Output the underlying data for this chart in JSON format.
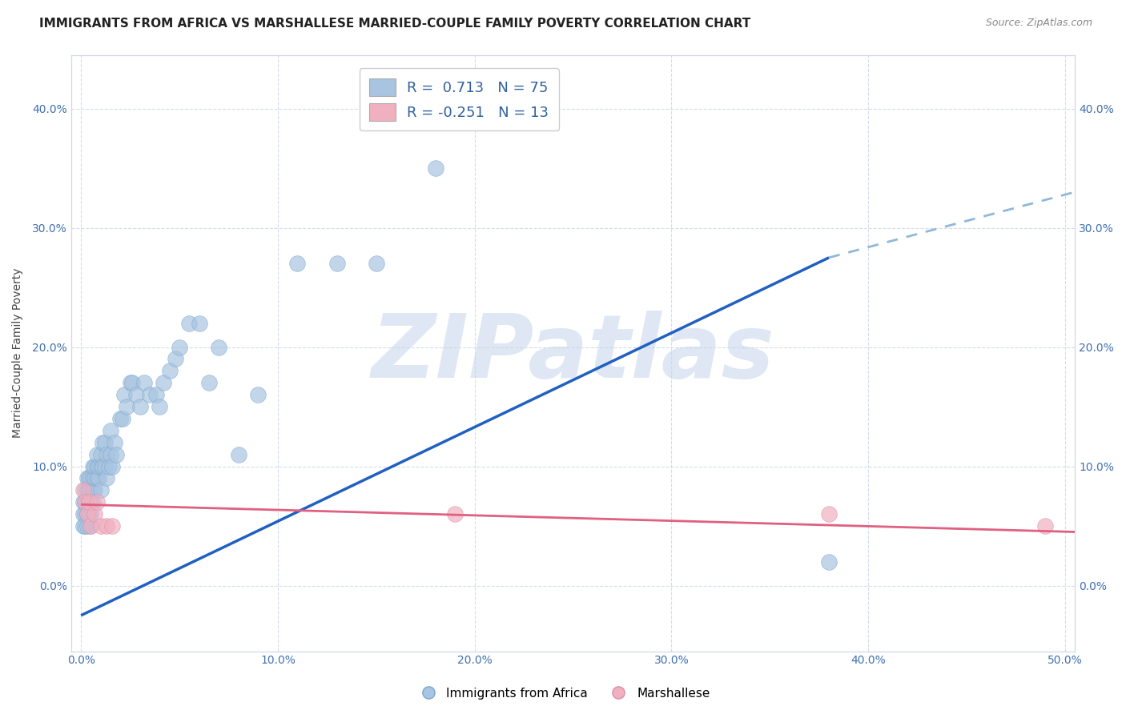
{
  "title": "IMMIGRANTS FROM AFRICA VS MARSHALLESE MARRIED-COUPLE FAMILY POVERTY CORRELATION CHART",
  "source": "Source: ZipAtlas.com",
  "ylabel": "Married-Couple Family Poverty",
  "xlim": [
    -0.005,
    0.505
  ],
  "ylim": [
    -0.055,
    0.445
  ],
  "xticks": [
    0.0,
    0.1,
    0.2,
    0.3,
    0.4,
    0.5
  ],
  "yticks": [
    0.0,
    0.1,
    0.2,
    0.3,
    0.4
  ],
  "ytick_labels": [
    "0.0%",
    "10.0%",
    "20.0%",
    "30.0%",
    "40.0%"
  ],
  "xtick_labels": [
    "0.0%",
    "10.0%",
    "20.0%",
    "30.0%",
    "40.0%",
    "50.0%"
  ],
  "africa_color": "#a8c4e0",
  "africa_edge_color": "#7aa8cc",
  "marshallese_color": "#f0b0c0",
  "marshallese_edge_color": "#d890a8",
  "africa_line_color": "#2060c0",
  "marshallese_line_color": "#e06080",
  "dashed_line_color": "#90b8d8",
  "africa_R": 0.713,
  "africa_N": 75,
  "marshallese_R": -0.251,
  "marshallese_N": 13,
  "africa_scatter_x": [
    0.001,
    0.001,
    0.001,
    0.002,
    0.002,
    0.002,
    0.002,
    0.003,
    0.003,
    0.003,
    0.003,
    0.003,
    0.004,
    0.004,
    0.004,
    0.004,
    0.005,
    0.005,
    0.005,
    0.005,
    0.005,
    0.006,
    0.006,
    0.006,
    0.006,
    0.007,
    0.007,
    0.007,
    0.008,
    0.008,
    0.008,
    0.009,
    0.009,
    0.01,
    0.01,
    0.01,
    0.011,
    0.011,
    0.012,
    0.012,
    0.013,
    0.013,
    0.014,
    0.015,
    0.015,
    0.016,
    0.017,
    0.018,
    0.02,
    0.021,
    0.022,
    0.023,
    0.025,
    0.026,
    0.028,
    0.03,
    0.032,
    0.035,
    0.038,
    0.04,
    0.042,
    0.045,
    0.048,
    0.05,
    0.055,
    0.06,
    0.065,
    0.07,
    0.08,
    0.09,
    0.11,
    0.13,
    0.15,
    0.18,
    0.38
  ],
  "africa_scatter_y": [
    0.07,
    0.06,
    0.05,
    0.06,
    0.07,
    0.05,
    0.08,
    0.06,
    0.07,
    0.08,
    0.05,
    0.09,
    0.07,
    0.06,
    0.08,
    0.09,
    0.06,
    0.07,
    0.08,
    0.09,
    0.05,
    0.07,
    0.08,
    0.09,
    0.1,
    0.08,
    0.09,
    0.1,
    0.09,
    0.1,
    0.11,
    0.09,
    0.1,
    0.08,
    0.1,
    0.11,
    0.1,
    0.12,
    0.1,
    0.12,
    0.09,
    0.11,
    0.1,
    0.11,
    0.13,
    0.1,
    0.12,
    0.11,
    0.14,
    0.14,
    0.16,
    0.15,
    0.17,
    0.17,
    0.16,
    0.15,
    0.17,
    0.16,
    0.16,
    0.15,
    0.17,
    0.18,
    0.19,
    0.2,
    0.22,
    0.22,
    0.17,
    0.2,
    0.11,
    0.16,
    0.27,
    0.27,
    0.27,
    0.35,
    0.02
  ],
  "marshallese_scatter_x": [
    0.001,
    0.002,
    0.003,
    0.004,
    0.005,
    0.007,
    0.008,
    0.01,
    0.013,
    0.016,
    0.19,
    0.49,
    0.38
  ],
  "marshallese_scatter_y": [
    0.08,
    0.07,
    0.06,
    0.07,
    0.05,
    0.06,
    0.07,
    0.05,
    0.05,
    0.05,
    0.06,
    0.05,
    0.06
  ],
  "africa_line_x0": 0.0,
  "africa_line_y0": -0.025,
  "africa_line_x1": 0.38,
  "africa_line_y1": 0.275,
  "dashed_line_x0": 0.38,
  "dashed_line_y0": 0.275,
  "dashed_line_x1": 0.505,
  "dashed_line_y1": 0.33,
  "marshallese_line_x0": 0.0,
  "marshallese_line_y0": 0.068,
  "marshallese_line_x1": 0.505,
  "marshallese_line_y1": 0.045,
  "watermark": "ZIPatlas",
  "watermark_color": "#c8d8ec",
  "background_color": "#ffffff",
  "grid_color": "#d0d8e8",
  "title_fontsize": 11,
  "axis_label_fontsize": 10,
  "tick_fontsize": 10,
  "legend_fontsize": 13,
  "source_fontsize": 9
}
